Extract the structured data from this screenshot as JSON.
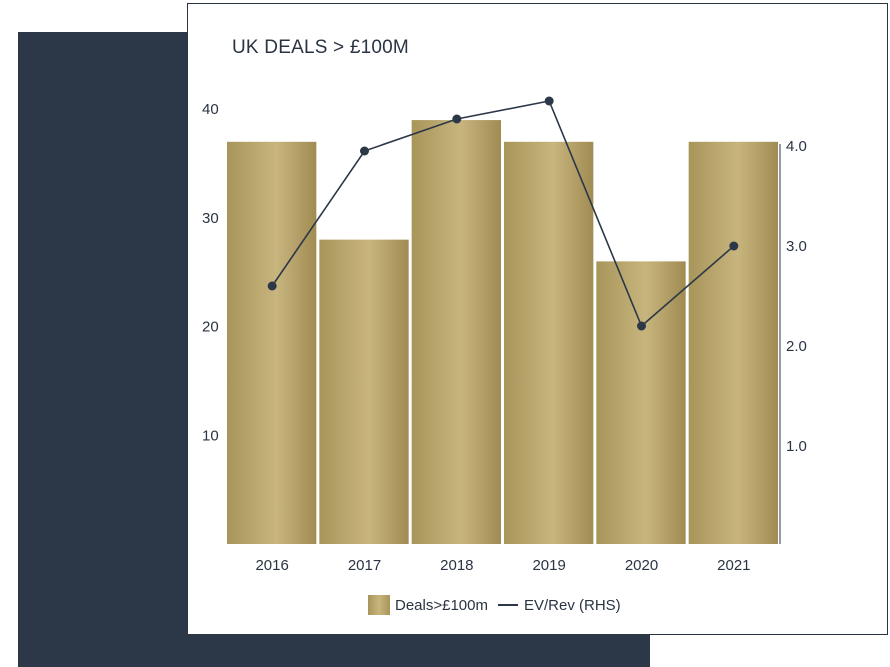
{
  "colors": {
    "navy": "#2c3848",
    "gold": "#b5a166",
    "card_border": "#2a3442"
  },
  "legend": {
    "bar_label": "Deals>£100m",
    "line_label": "EV/Rev (RHS)"
  },
  "chart_data": {
    "type": "bar",
    "title": "UK DEALS > £100M",
    "categories": [
      "2016",
      "2017",
      "2018",
      "2019",
      "2020",
      "2021"
    ],
    "series": [
      {
        "name": "Deals>£100m",
        "type": "bar",
        "axis": "left",
        "values": [
          37,
          28,
          39,
          37,
          26,
          37
        ]
      },
      {
        "name": "EV/Rev (RHS)",
        "type": "line",
        "axis": "right",
        "values": [
          2.6,
          3.95,
          4.27,
          4.45,
          2.2,
          3.0
        ]
      }
    ],
    "y_left": {
      "ticks": [
        "10",
        "20",
        "30",
        "40"
      ],
      "ylim": [
        0,
        50
      ]
    },
    "y_right": {
      "ticks": [
        "1.0",
        "2.0",
        "3.0",
        "4.0"
      ],
      "ylim": [
        0,
        5
      ]
    },
    "grid": false,
    "legend_position": "bottom-center"
  }
}
